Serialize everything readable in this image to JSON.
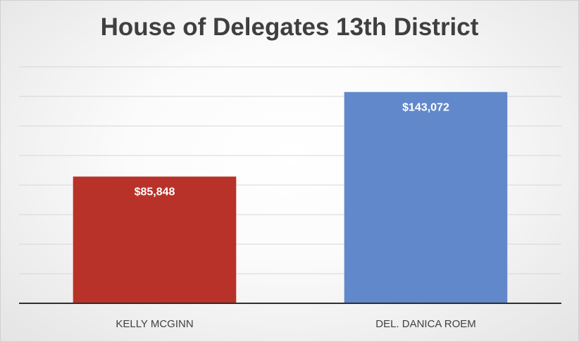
{
  "chart_data": {
    "type": "bar",
    "title": "House of Delegates 13th District",
    "categories": [
      "KELLY MCGINN",
      "DEL. DANICA ROEM"
    ],
    "values": [
      85848,
      143072
    ],
    "data_labels": [
      "$85,848",
      "$143,072"
    ],
    "bar_colors": [
      "#b83229",
      "#6188ca"
    ],
    "xlabel": "",
    "ylabel": "",
    "ylim": [
      0,
      160000
    ],
    "grid": true,
    "legend": "none"
  }
}
